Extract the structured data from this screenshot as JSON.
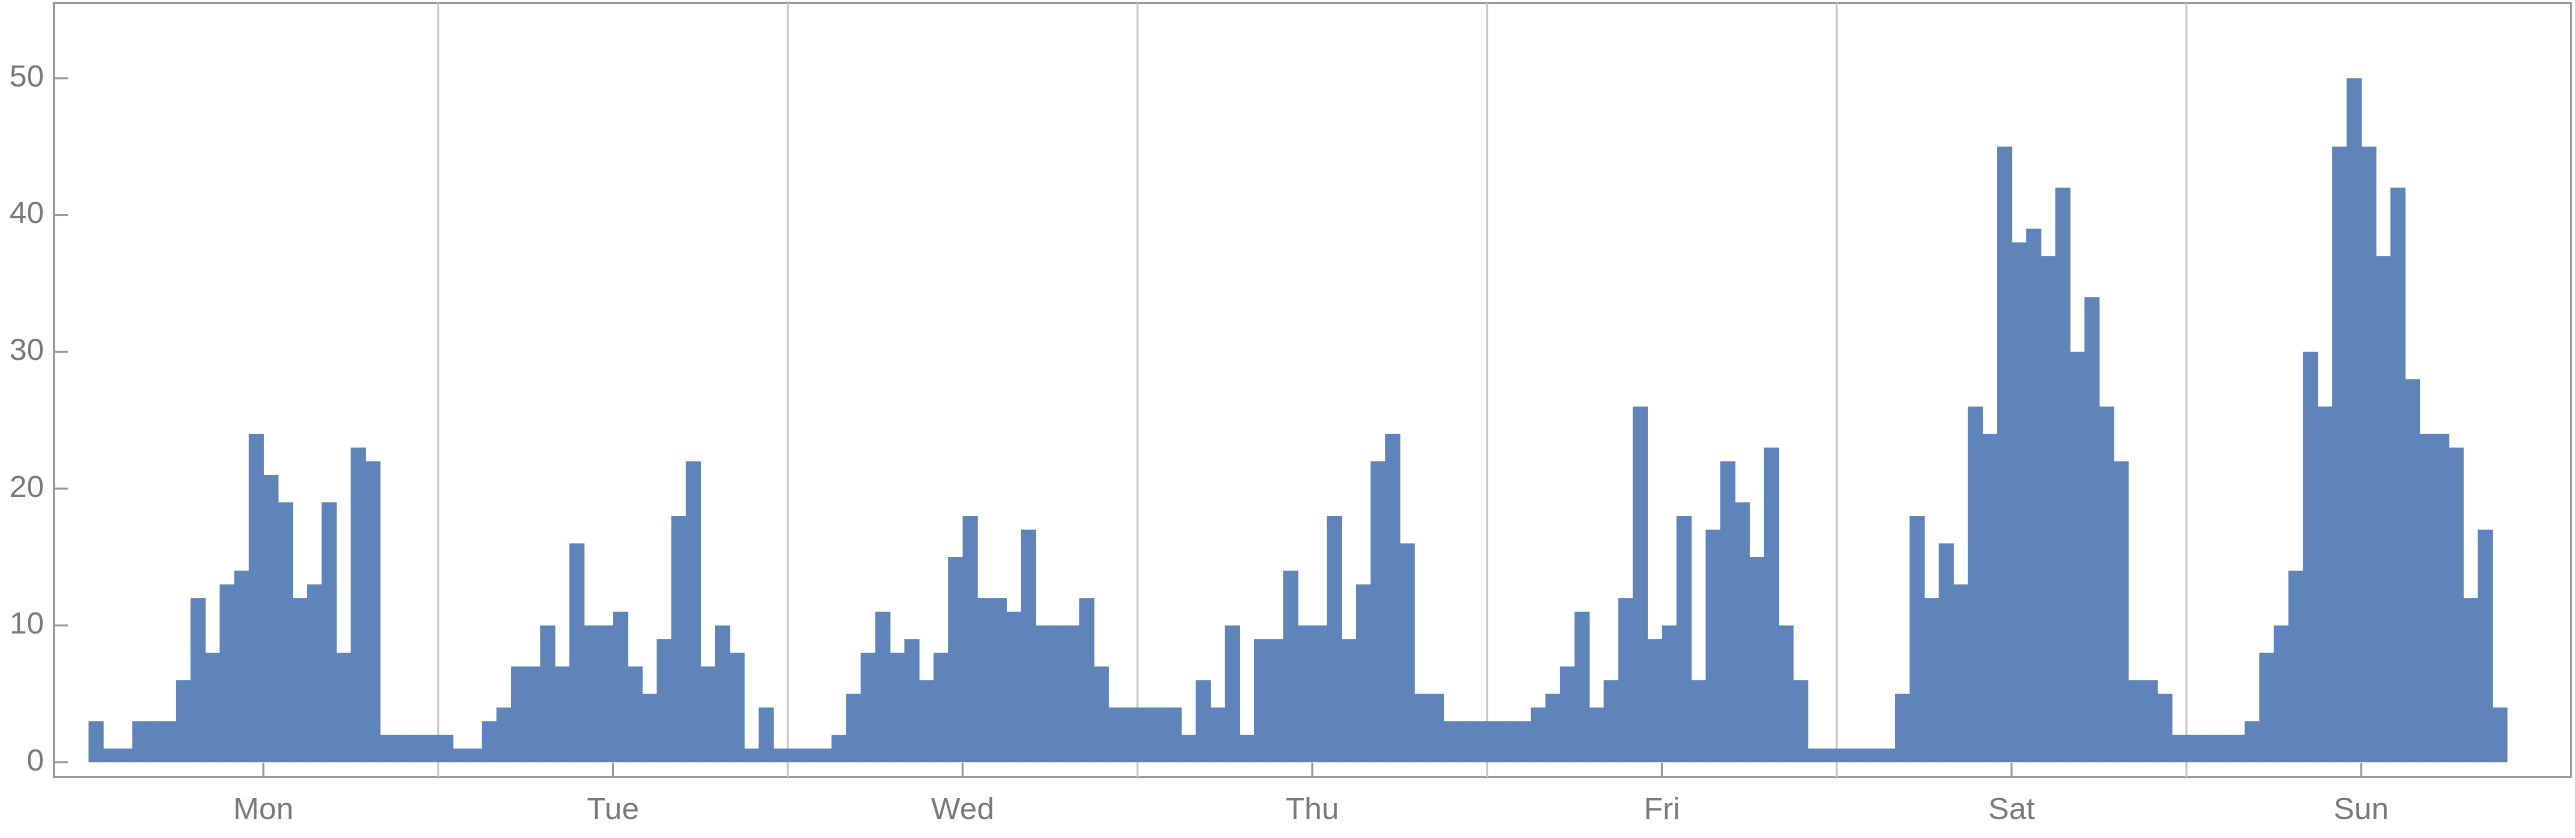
{
  "chart_data": {
    "type": "histogram",
    "bins": [
      0,
      1,
      2,
      3,
      4,
      5,
      6,
      7,
      8,
      9,
      10,
      11,
      12,
      13,
      14,
      15,
      16,
      17,
      18,
      19,
      20,
      21,
      22,
      23,
      24,
      25,
      26,
      27,
      28,
      29,
      30,
      31,
      32,
      33,
      34,
      35,
      36,
      37,
      38,
      39,
      40,
      41,
      42,
      43,
      44,
      45,
      46,
      47,
      48,
      49,
      50,
      51,
      52,
      53,
      54,
      55,
      56,
      57,
      58,
      59,
      60,
      61,
      62,
      63,
      64,
      65,
      66,
      67,
      68,
      69,
      70,
      71,
      72,
      73,
      74,
      75,
      76,
      77,
      78,
      79,
      80,
      81,
      82,
      83,
      84,
      85,
      86,
      87,
      88,
      89,
      90,
      91,
      92,
      93,
      94,
      95,
      96,
      97,
      98,
      99,
      100,
      101,
      102,
      103,
      104,
      105,
      106,
      107,
      108,
      109,
      110,
      111,
      112,
      113,
      114,
      115,
      116,
      117,
      118,
      119,
      120,
      121,
      122,
      123,
      124,
      125,
      126,
      127,
      128,
      129,
      130,
      131,
      132,
      133,
      134,
      135,
      136,
      137,
      138,
      139,
      140,
      141,
      142,
      143,
      144,
      145,
      146,
      147,
      148,
      149,
      150,
      151,
      152,
      153,
      154,
      155,
      156,
      157,
      158,
      159,
      160,
      161,
      162,
      163,
      164,
      165,
      166
    ],
    "counts": [
      3,
      1,
      1,
      3,
      3,
      3,
      6,
      12,
      8,
      13,
      14,
      24,
      21,
      19,
      12,
      13,
      19,
      8,
      23,
      22,
      2,
      2,
      2,
      2,
      2,
      1,
      1,
      3,
      4,
      7,
      7,
      10,
      7,
      16,
      10,
      10,
      11,
      7,
      5,
      9,
      18,
      22,
      7,
      10,
      8,
      1,
      4,
      1,
      1,
      1,
      1,
      2,
      5,
      8,
      11,
      8,
      9,
      6,
      8,
      15,
      18,
      12,
      12,
      11,
      17,
      10,
      10,
      10,
      12,
      7,
      4,
      4,
      4,
      4,
      4,
      2,
      6,
      4,
      10,
      2,
      9,
      9,
      14,
      10,
      10,
      18,
      9,
      13,
      22,
      24,
      16,
      5,
      5,
      3,
      3,
      3,
      3,
      3,
      3,
      4,
      5,
      7,
      11,
      4,
      6,
      12,
      26,
      9,
      10,
      18,
      6,
      17,
      22,
      19,
      15,
      23,
      10,
      6,
      1,
      1,
      1,
      1,
      1,
      1,
      5,
      18,
      12,
      16,
      13,
      26,
      24,
      45,
      38,
      39,
      37,
      42,
      30,
      34,
      26,
      22,
      6,
      6,
      5,
      2,
      2,
      2,
      2,
      2,
      3,
      8,
      10,
      14,
      30,
      26,
      45,
      50,
      45,
      37,
      42,
      28,
      24,
      24,
      23,
      12,
      17,
      4
    ],
    "color": "#5f84b9",
    "xlim": [
      -2.37,
      170.4
    ],
    "ylim": [
      -1.08,
      55.5
    ],
    "yticks": [
      0,
      10,
      20,
      30,
      40,
      50
    ],
    "xticks": [
      {
        "value": 12,
        "label": "Mon"
      },
      {
        "value": 36,
        "label": "Tue"
      },
      {
        "value": 60,
        "label": "Wed"
      },
      {
        "value": 84,
        "label": "Thu"
      },
      {
        "value": 108,
        "label": "Fri"
      },
      {
        "value": 132,
        "label": "Sat"
      },
      {
        "value": 156,
        "label": "Sun"
      }
    ],
    "xgrid": [
      24,
      48,
      72,
      96,
      120,
      144
    ]
  }
}
